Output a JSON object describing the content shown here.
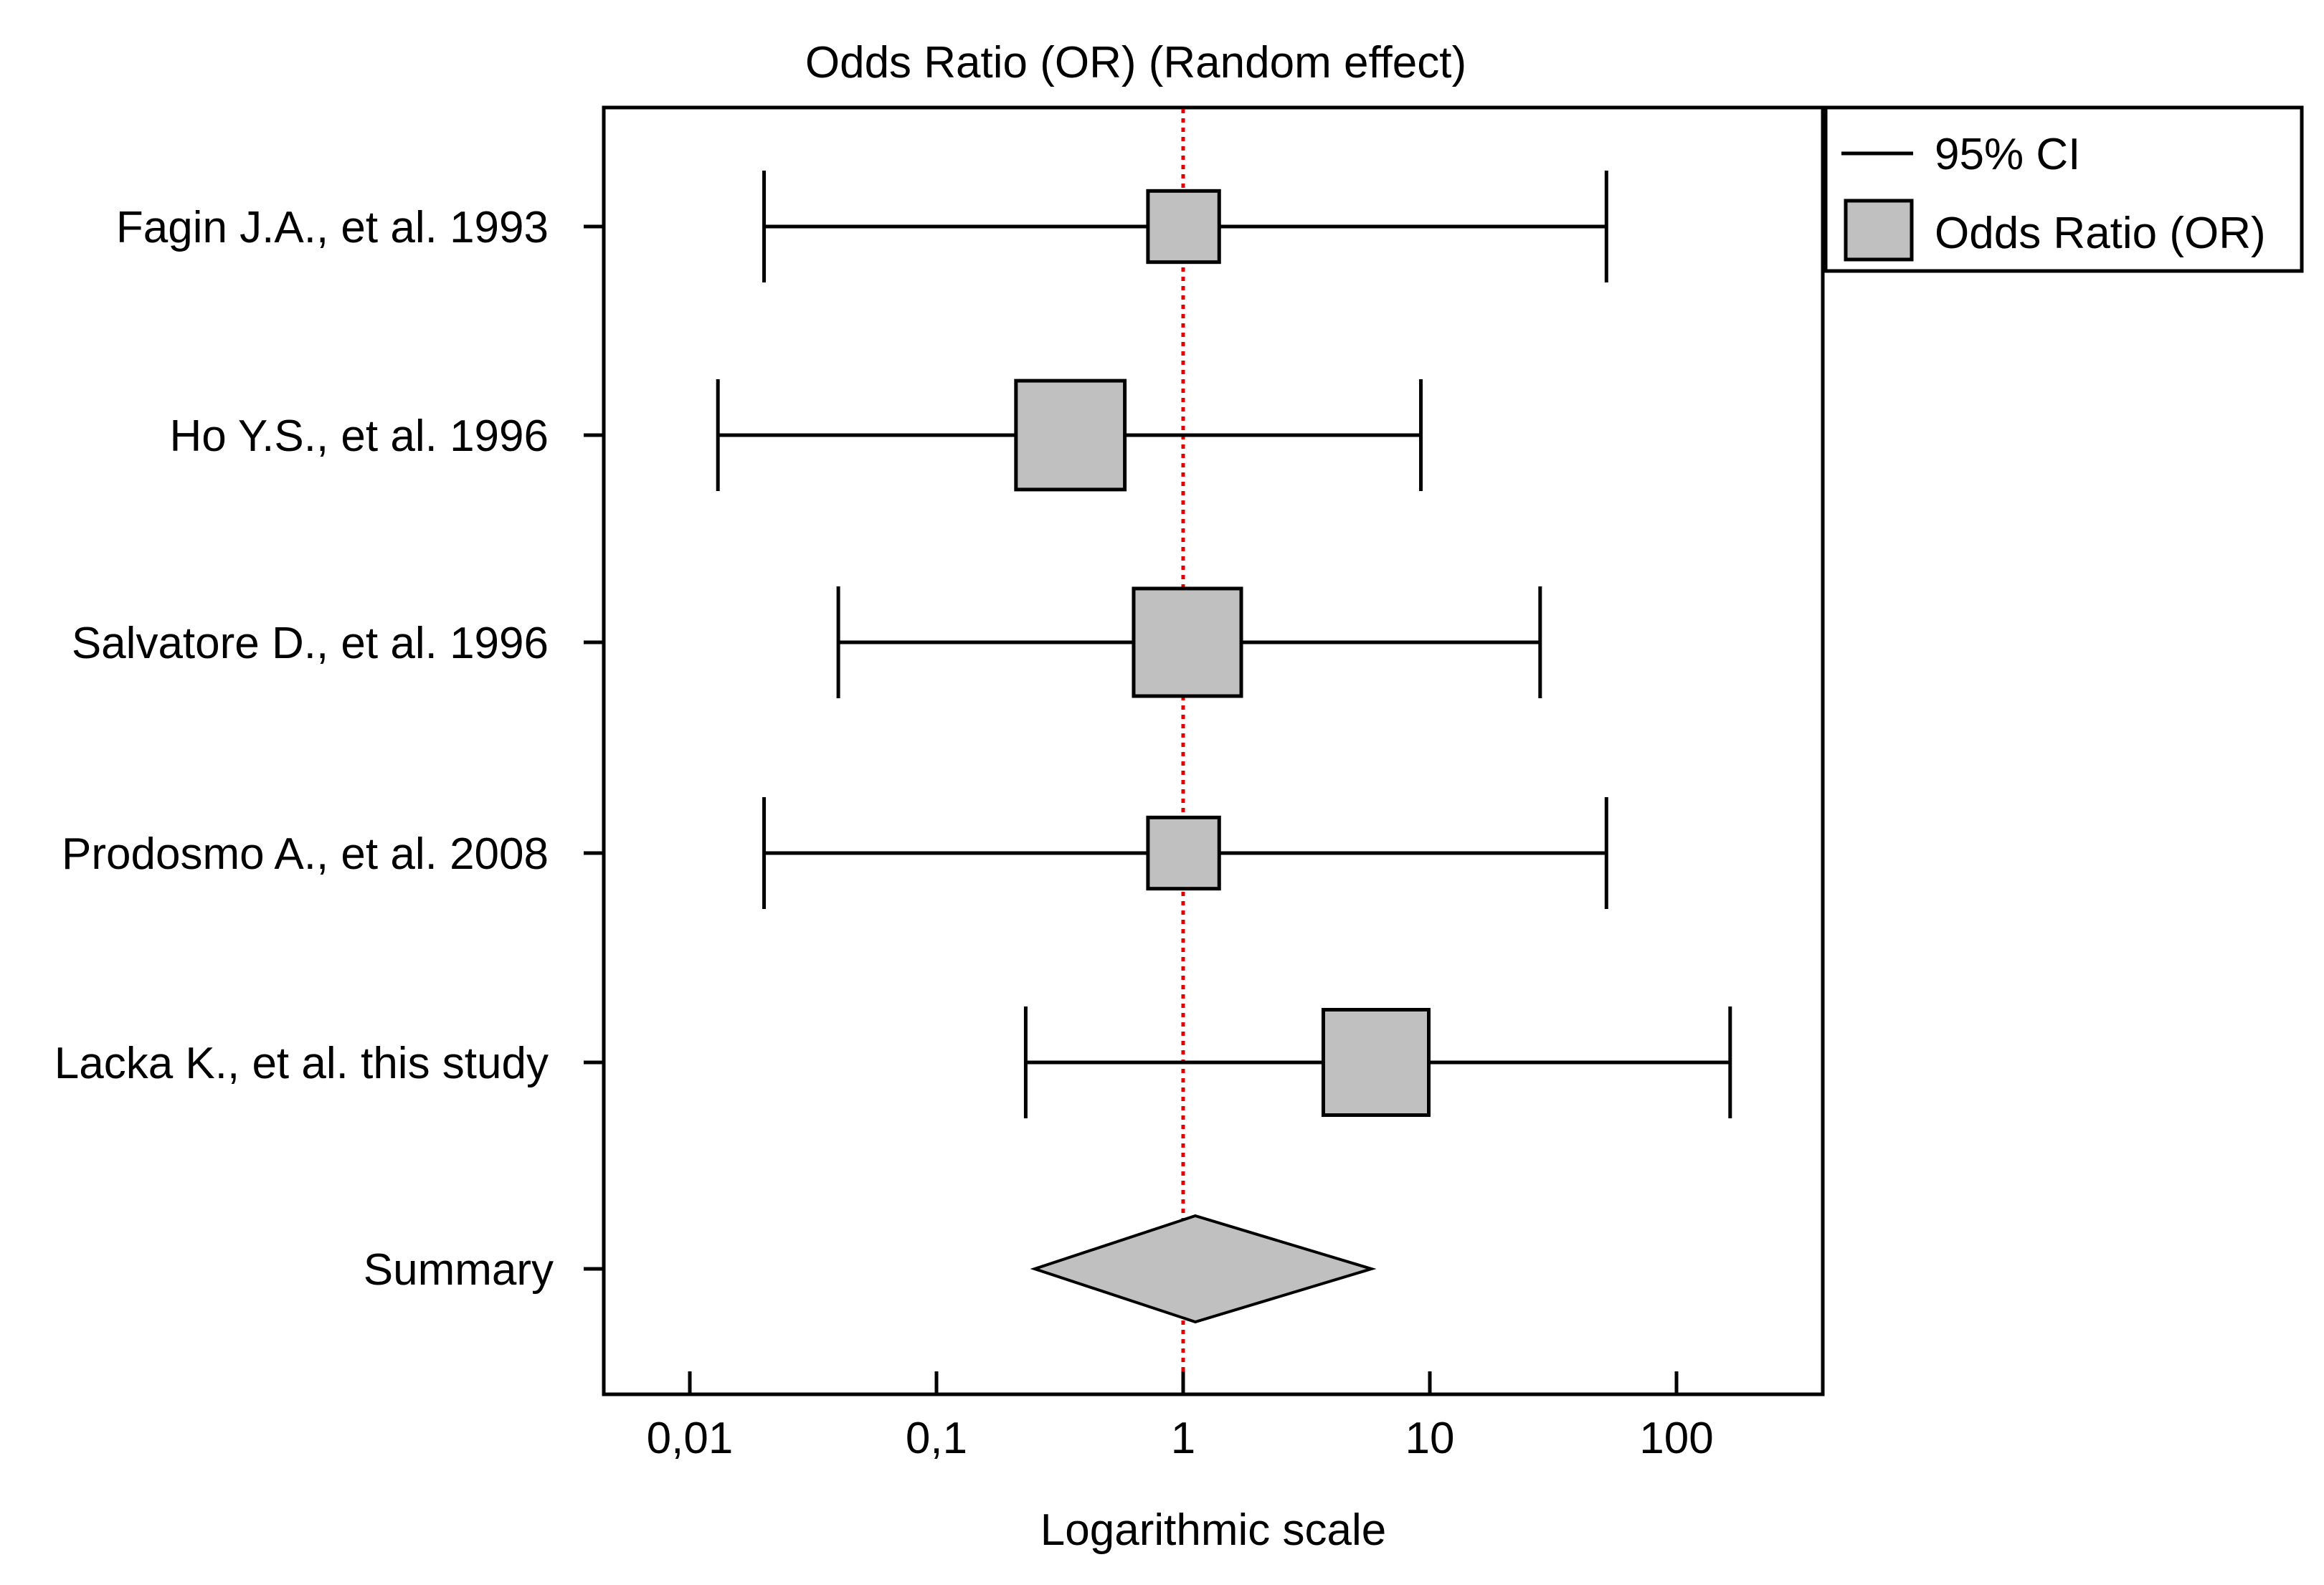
{
  "chart_data": {
    "type": "forest",
    "title": "Odds Ratio (OR) (Random effect)",
    "xlabel": "Logarithmic scale",
    "xscale": "log",
    "xlim": [
      0.0045,
      320
    ],
    "reference_line": 1,
    "x_ticks": [
      {
        "value": 0.01,
        "label": "0,01"
      },
      {
        "value": 0.1,
        "label": "0,1"
      },
      {
        "value": 1,
        "label": "1"
      },
      {
        "value": 10,
        "label": "10"
      },
      {
        "value": 100,
        "label": "100"
      }
    ],
    "studies": [
      {
        "label": "Fagin J.A.,  et al. 1993",
        "or": 1.0,
        "ci_low": 0.02,
        "ci_high": 52,
        "box_low": 0.72,
        "box_high": 1.4
      },
      {
        "label": "Ho Y.S., et al. 1996",
        "or": 0.35,
        "ci_low": 0.013,
        "ci_high": 9.2,
        "box_low": 0.21,
        "box_high": 0.58
      },
      {
        "label": "Salvatore D., et al. 1996",
        "or": 1.0,
        "ci_low": 0.04,
        "ci_high": 28,
        "box_low": 0.63,
        "box_high": 1.72
      },
      {
        "label": "Prodosmo A., et al. 2008",
        "or": 1.0,
        "ci_low": 0.02,
        "ci_high": 52,
        "box_low": 0.72,
        "box_high": 1.4
      },
      {
        "label": "Lacka K., et al. this study",
        "or": 6.0,
        "ci_low": 0.23,
        "ci_high": 165,
        "box_low": 3.7,
        "box_high": 9.9
      }
    ],
    "summary": {
      "label": "Summary",
      "or": 1.12,
      "ci_low": 0.25,
      "ci_high": 5.8
    },
    "legend": {
      "position": "top-right-outside",
      "entries": [
        {
          "label": "95% CI",
          "symbol": "line"
        },
        {
          "label": "Odds Ratio (OR)",
          "symbol": "box"
        }
      ]
    },
    "colors": {
      "box_fill": "#c0c0c0",
      "reference_line": "#e00000",
      "stroke": "#000000"
    }
  }
}
